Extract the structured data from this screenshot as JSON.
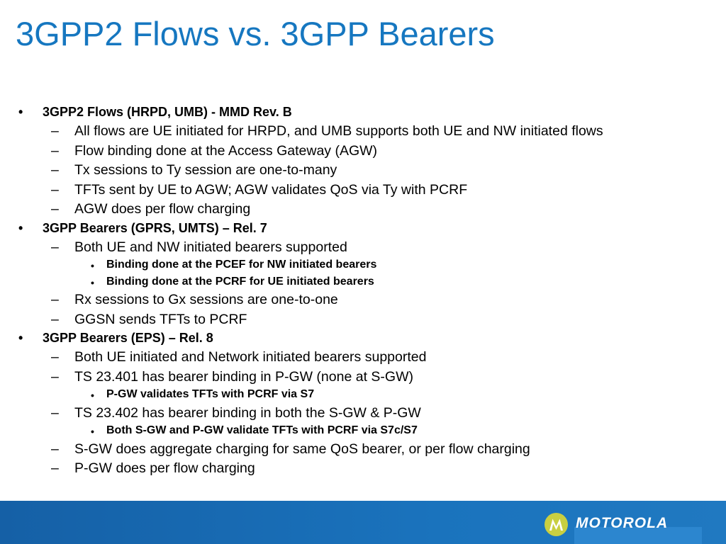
{
  "title": "3GPP2 Flows vs. 3GPP Bearers",
  "bullet_mark": "•",
  "dash_mark": "–",
  "sections": [
    {
      "heading": "3GPP2 Flows (HRPD, UMB) - MMD Rev. B",
      "items": [
        "All flows are UE initiated for HRPD, and UMB supports both UE and NW initiated flows",
        "Flow binding done at the Access Gateway (AGW)",
        "Tx sessions to Ty session are one-to-many",
        "TFTs sent by UE to AGW; AGW validates QoS via Ty with PCRF",
        "AGW does per flow charging"
      ]
    },
    {
      "heading": "3GPP Bearers (GPRS, UMTS) – Rel. 7",
      "items": [
        "Both UE and NW initiated bearers supported",
        "Binding done at the PCEF for NW initiated bearers",
        "Binding done at the PCRF for UE initiated bearers",
        "Rx sessions to Gx sessions are one-to-one",
        "GGSN sends TFTs to PCRF"
      ]
    },
    {
      "heading": "3GPP Bearers (EPS) – Rel. 8",
      "items": [
        "Both UE initiated and Network initiated bearers supported",
        "TS 23.401 has bearer binding in P-GW (none at S-GW)",
        "P-GW validates TFTs with PCRF via S7",
        "TS 23.402 has bearer binding in both the S-GW & P-GW",
        "Both S-GW and P-GW validate TFTs with PCRF via S7c/S7",
        "S-GW does aggregate charging for same QoS bearer, or per flow charging",
        "P-GW does per flow charging"
      ]
    }
  ],
  "footer": {
    "brand": "MOTOROLA",
    "logo_icon": "motorola-batwing-icon",
    "background_color": "#1a6db5",
    "logo_color": "#c9cf41"
  }
}
